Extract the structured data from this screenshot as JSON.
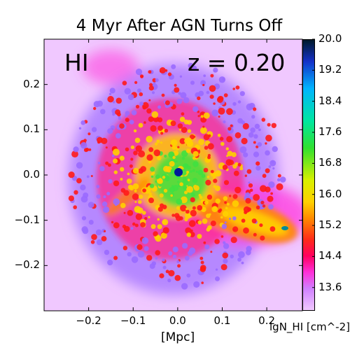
{
  "title": "4 Myr After AGN Turns Off",
  "inset_labels": {
    "species": "HI",
    "redshift": "z = 0.20"
  },
  "xlabel": "[Mpc]",
  "colorbar_label": "lgN_HI [cm^-2]",
  "colors": {
    "background_haze": "#f0c8ff",
    "mid_halo": "#a878ff",
    "clump_red": "#ff1a1a",
    "clump_yellow": "#ffd000",
    "core_green": "#40e040",
    "core_blue": "#001a9a"
  },
  "chart_data": {
    "type": "heatmap",
    "title": "4 Myr After AGN Turns Off",
    "xlabel": "[Mpc]",
    "ylabel": "",
    "xlim": [
      -0.3,
      0.28
    ],
    "ylim": [
      -0.3,
      0.3
    ],
    "x_ticks": [
      "−0.2",
      "−0.1",
      "0.0",
      "0.1",
      "0.2"
    ],
    "x_tick_values": [
      -0.2,
      -0.1,
      0.0,
      0.1,
      0.2
    ],
    "y_ticks": [
      "0.2",
      "0.1",
      "0.0",
      "−0.1",
      "−0.2"
    ],
    "y_tick_values": [
      0.2,
      0.1,
      0.0,
      -0.1,
      -0.2
    ],
    "colorbar": {
      "label": "lgN_HI [cm^-2]",
      "range": [
        13.0,
        20.0
      ],
      "ticks": [
        "20.0",
        "19.2",
        "18.4",
        "17.6",
        "16.8",
        "16.0",
        "15.2",
        "14.4",
        "13.6"
      ],
      "tick_values": [
        20.0,
        19.2,
        18.4,
        17.6,
        16.8,
        16.0,
        15.2,
        14.4,
        13.6
      ],
      "colormap": "gist_ncar-like"
    },
    "annotations": [
      "HI",
      "z = 0.20"
    ]
  }
}
